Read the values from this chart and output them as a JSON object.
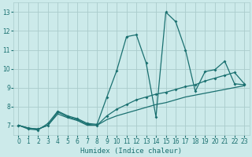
{
  "xlabel": "Humidex (Indice chaleur)",
  "bg_color": "#cceaea",
  "grid_color": "#aacccc",
  "line_color": "#1a7070",
  "xlim": [
    -0.5,
    23.5
  ],
  "ylim": [
    6.5,
    13.5
  ],
  "xticks": [
    0,
    1,
    2,
    3,
    4,
    5,
    6,
    7,
    8,
    9,
    10,
    11,
    12,
    13,
    14,
    15,
    16,
    17,
    18,
    19,
    20,
    21,
    22,
    23
  ],
  "yticks": [
    7,
    8,
    9,
    10,
    11,
    12,
    13
  ],
  "series1_x": [
    0,
    1,
    2,
    3,
    4,
    5,
    6,
    7,
    8,
    9,
    10,
    11,
    12,
    13,
    14,
    15,
    16,
    17,
    18,
    19,
    20,
    21,
    22,
    23
  ],
  "series1_y": [
    7.0,
    6.8,
    6.75,
    7.1,
    7.75,
    7.5,
    7.35,
    7.1,
    7.05,
    8.5,
    9.9,
    11.7,
    11.8,
    10.3,
    7.45,
    13.0,
    12.5,
    11.0,
    8.8,
    9.85,
    9.95,
    10.4,
    9.2,
    9.15
  ],
  "series2_x": [
    0,
    1,
    2,
    3,
    4,
    5,
    6,
    7,
    8,
    9,
    10,
    11,
    12,
    13,
    14,
    15,
    16,
    17,
    18,
    19,
    20,
    21,
    22,
    23
  ],
  "series2_y": [
    7.0,
    6.85,
    6.8,
    7.0,
    7.7,
    7.45,
    7.3,
    7.05,
    7.0,
    7.5,
    7.85,
    8.1,
    8.35,
    8.5,
    8.65,
    8.75,
    8.9,
    9.05,
    9.15,
    9.35,
    9.5,
    9.65,
    9.8,
    9.2
  ],
  "series3_x": [
    0,
    1,
    2,
    3,
    4,
    5,
    6,
    7,
    8,
    9,
    10,
    11,
    12,
    13,
    14,
    15,
    16,
    17,
    18,
    19,
    20,
    21,
    22,
    23
  ],
  "series3_y": [
    7.0,
    6.85,
    6.8,
    7.0,
    7.6,
    7.4,
    7.25,
    7.0,
    7.0,
    7.3,
    7.5,
    7.65,
    7.8,
    7.95,
    8.1,
    8.2,
    8.35,
    8.5,
    8.6,
    8.7,
    8.8,
    8.9,
    9.0,
    9.1
  ]
}
